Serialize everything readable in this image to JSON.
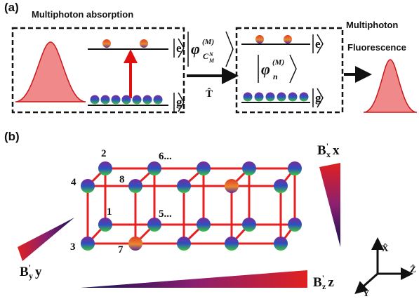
{
  "panel_a": {
    "label": "(a)",
    "title": "Multiphoton absorption",
    "ket_e": "e",
    "ket_g": "g",
    "state_CMN": {
      "symbol": "φ",
      "sup": "(M)",
      "sub": "C",
      "sub_sub": "M",
      "sub_sup": "N"
    },
    "operator": "T̂",
    "state_n": {
      "symbol": "φ",
      "sup": "(M)",
      "sub": "n"
    },
    "ket_e2": "e",
    "ket_g2": "g",
    "output_line1": "Multiphoton",
    "output_line2": "Fluorescence"
  },
  "panel_b": {
    "label": "(b)",
    "site_labels": [
      "2",
      "6...",
      "4",
      "8",
      "1",
      "5...",
      "3",
      "7"
    ],
    "field_x": {
      "base": "B",
      "prime": "'",
      "sub": "x",
      "var": "x"
    },
    "field_y": {
      "base": "B",
      "prime": "'",
      "sub": "y",
      "var": "y"
    },
    "field_z": {
      "base": "B",
      "prime": "'",
      "sub": "z",
      "var": "z"
    },
    "axes": {
      "x": "X̂",
      "z": "Ẑ",
      "y": "Ŷ"
    }
  }
}
